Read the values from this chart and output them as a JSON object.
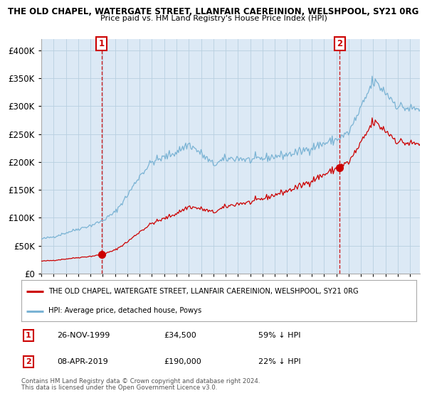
{
  "title": "THE OLD CHAPEL, WATERGATE STREET, LLANFAIR CAEREINION, WELSHPOOL, SY21 0RG",
  "subtitle": "Price paid vs. HM Land Registry's House Price Index (HPI)",
  "legend_line1": "THE OLD CHAPEL, WATERGATE STREET, LLANFAIR CAEREINION, WELSHPOOL, SY21 0RG",
  "legend_line2": "HPI: Average price, detached house, Powys",
  "annotation1_label": "1",
  "annotation1_date": "26-NOV-1999",
  "annotation1_price": "£34,500",
  "annotation1_pct": "59% ↓ HPI",
  "annotation2_label": "2",
  "annotation2_date": "08-APR-2019",
  "annotation2_price": "£190,000",
  "annotation2_pct": "22% ↓ HPI",
  "footer1": "Contains HM Land Registry data © Crown copyright and database right 2024.",
  "footer2": "This data is licensed under the Open Government Licence v3.0.",
  "hpi_color": "#7ab3d4",
  "property_color": "#cc0000",
  "dot_color": "#cc0000",
  "vline_color": "#cc0000",
  "bg_color": "#dce9f5",
  "grid_color": "#b8cfe0",
  "annotation_box_color": "#cc0000",
  "ylim": [
    0,
    420000
  ],
  "ytick_step": 50000,
  "xmin": 1995.0,
  "xmax": 2025.8,
  "sale1_x": 1999.896,
  "sale1_y": 34500,
  "sale2_x": 2019.27,
  "sale2_y": 190000
}
